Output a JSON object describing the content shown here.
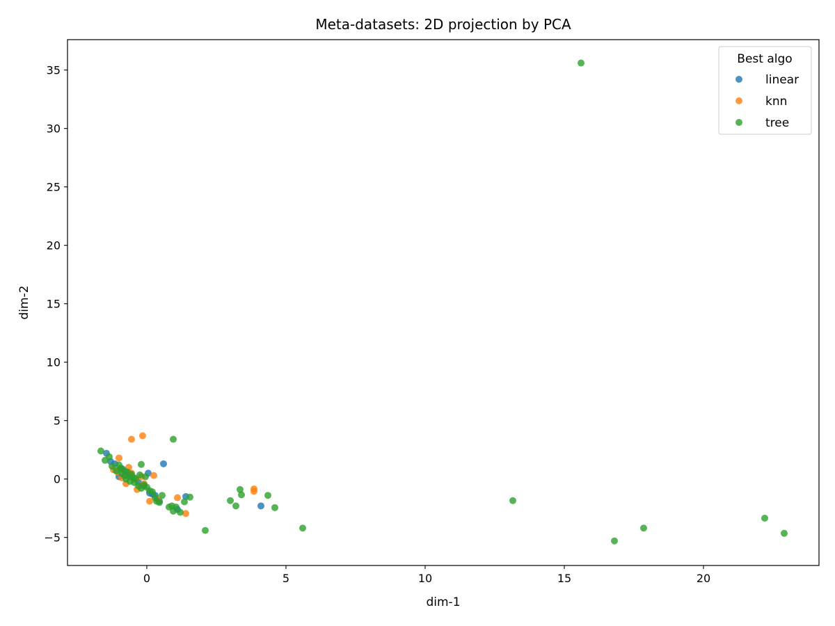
{
  "chart_data": {
    "type": "scatter",
    "title": "Meta-datasets: 2D projection by PCA",
    "xlabel": "dim-1",
    "ylabel": "dim-2",
    "xlim": [
      -2.85,
      24.15
    ],
    "ylim": [
      -7.4,
      37.6
    ],
    "xticks": [
      0,
      5,
      10,
      15,
      20
    ],
    "yticks": [
      -5,
      0,
      5,
      10,
      15,
      20,
      25,
      30,
      35
    ],
    "grid": false,
    "legend": {
      "title": "Best algo",
      "placement": "top-right"
    },
    "series": [
      {
        "name": "linear",
        "color": "#1f77b4",
        "points": [
          [
            -1.45,
            2.2
          ],
          [
            -1.3,
            1.5
          ],
          [
            -1.15,
            1.3
          ],
          [
            -1.0,
            0.2
          ],
          [
            -0.9,
            0.9
          ],
          [
            -0.75,
            0.6
          ],
          [
            -0.6,
            0.4
          ],
          [
            -0.45,
            0.1
          ],
          [
            -0.3,
            -0.3
          ],
          [
            -0.1,
            -0.6
          ],
          [
            0.05,
            0.5
          ],
          [
            0.1,
            -1.2
          ],
          [
            0.2,
            -1.3
          ],
          [
            0.3,
            -1.4
          ],
          [
            0.45,
            -1.9
          ],
          [
            0.6,
            1.3
          ],
          [
            1.1,
            -2.6
          ],
          [
            1.4,
            -1.5
          ],
          [
            4.1,
            -2.3
          ]
        ]
      },
      {
        "name": "knn",
        "color": "#ff7f0e",
        "points": [
          [
            -0.55,
            3.4
          ],
          [
            -0.15,
            3.7
          ],
          [
            -1.0,
            1.8
          ],
          [
            -1.2,
            0.8
          ],
          [
            -1.05,
            0.6
          ],
          [
            -0.9,
            0.1
          ],
          [
            -0.75,
            -0.4
          ],
          [
            -0.65,
            1.0
          ],
          [
            -0.55,
            0.5
          ],
          [
            -0.4,
            0.0
          ],
          [
            -0.35,
            -0.9
          ],
          [
            -0.2,
            0.2
          ],
          [
            -0.1,
            -0.4
          ],
          [
            0.1,
            -1.9
          ],
          [
            0.25,
            0.3
          ],
          [
            0.4,
            -1.8
          ],
          [
            1.1,
            -1.6
          ],
          [
            1.4,
            -2.95
          ],
          [
            3.85,
            -1.05
          ],
          [
            3.85,
            -0.85
          ]
        ]
      },
      {
        "name": "tree",
        "color": "#2ca02c",
        "points": [
          [
            -1.65,
            2.4
          ],
          [
            -1.5,
            1.6
          ],
          [
            -1.35,
            1.9
          ],
          [
            -1.25,
            1.1
          ],
          [
            -1.1,
            0.7
          ],
          [
            -1.0,
            1.2
          ],
          [
            -0.95,
            0.9
          ],
          [
            -0.9,
            0.5
          ],
          [
            -0.85,
            0.8
          ],
          [
            -0.8,
            0.3
          ],
          [
            -0.75,
            0.0
          ],
          [
            -0.7,
            0.6
          ],
          [
            -0.65,
            0.2
          ],
          [
            -0.6,
            -0.2
          ],
          [
            -0.55,
            0.4
          ],
          [
            -0.5,
            0.1
          ],
          [
            -0.45,
            -0.3
          ],
          [
            -0.4,
            0.0
          ],
          [
            -0.3,
            -0.6
          ],
          [
            -0.25,
            0.35
          ],
          [
            -0.2,
            -0.8
          ],
          [
            -0.2,
            1.25
          ],
          [
            -0.1,
            -0.5
          ],
          [
            -0.05,
            0.2
          ],
          [
            0.0,
            -0.7
          ],
          [
            0.1,
            -1.0
          ],
          [
            0.2,
            -1.1
          ],
          [
            0.3,
            -1.6
          ],
          [
            0.35,
            -1.9
          ],
          [
            0.45,
            -2.0
          ],
          [
            0.55,
            -1.4
          ],
          [
            0.8,
            -2.4
          ],
          [
            0.9,
            -2.3
          ],
          [
            0.95,
            -2.75
          ],
          [
            0.95,
            3.4
          ],
          [
            1.05,
            -2.4
          ],
          [
            1.2,
            -2.85
          ],
          [
            1.35,
            -1.95
          ],
          [
            1.55,
            -1.55
          ],
          [
            2.1,
            -4.4
          ],
          [
            3.0,
            -1.85
          ],
          [
            3.2,
            -2.3
          ],
          [
            3.35,
            -0.9
          ],
          [
            3.4,
            -1.35
          ],
          [
            4.35,
            -1.4
          ],
          [
            4.6,
            -2.45
          ],
          [
            5.6,
            -4.2
          ],
          [
            13.15,
            -1.85
          ],
          [
            15.6,
            35.6
          ],
          [
            16.8,
            -5.3
          ],
          [
            17.85,
            -4.2
          ],
          [
            22.2,
            -3.35
          ],
          [
            22.9,
            -4.65
          ]
        ]
      }
    ]
  }
}
